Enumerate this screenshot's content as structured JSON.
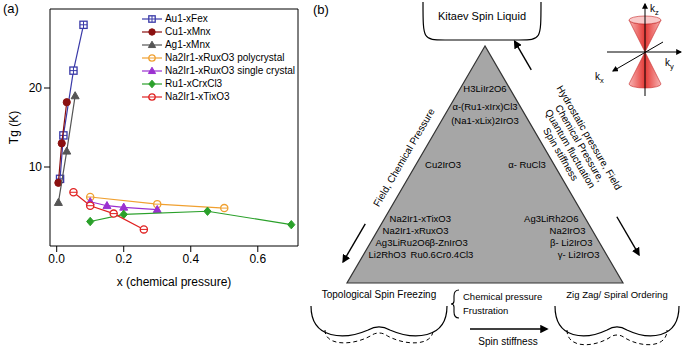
{
  "chart_data": {
    "type": "scatter",
    "panel": "(a)",
    "x_label": "x (chemical pressure)",
    "y_label": "Tg (K)",
    "xlim": [
      -0.02,
      0.72
    ],
    "xticks": [
      {
        "value": 0,
        "label": "0.0"
      },
      {
        "value": 0.2,
        "label": "0.2"
      },
      {
        "value": 0.4,
        "label": "0.4"
      },
      {
        "value": 0.6,
        "label": "0.6"
      }
    ],
    "ylim": [
      0,
      30
    ],
    "yticks": [
      10,
      20
    ],
    "legend": "upper right",
    "series": [
      {
        "name": "Au1-xFex",
        "color": "#3a3aa8",
        "marker": "square_open",
        "line_style": "solid",
        "x": [
          0.01,
          0.02,
          0.05,
          0.08
        ],
        "values": [
          8.5,
          14,
          22.2,
          28
        ]
      },
      {
        "name": "Cu1-xMnx",
        "color": "#8b1010",
        "marker": "circle",
        "line_style": "solid",
        "x": [
          0.005,
          0.015,
          0.03
        ],
        "values": [
          8,
          13,
          18.2
        ]
      },
      {
        "name": "Ag1-xMnx",
        "color": "#555555",
        "marker": "triangle",
        "line_style": "solid",
        "x": [
          0.005,
          0.03,
          0.055
        ],
        "values": [
          5.5,
          12,
          19
        ]
      },
      {
        "name": "Na2Ir1-xRuxO3 polycrystal",
        "color": "#f0a030",
        "marker": "circle_open",
        "line_style": "solid",
        "x": [
          0.1,
          0.3,
          0.5
        ],
        "values": [
          6.2,
          5.3,
          4.8
        ]
      },
      {
        "name": "Na2Ir1-xRuxO3 single crystal",
        "color": "#9b30d0",
        "marker": "triangle",
        "line_style": "solid",
        "x": [
          0.1,
          0.15,
          0.2,
          0.3
        ],
        "values": [
          5.6,
          5.1,
          4.9,
          4.6
        ]
      },
      {
        "name": "Ru1-xCrxCl3",
        "color": "#2aa02a",
        "marker": "diamond",
        "line_style": "solid",
        "x": [
          0.1,
          0.2,
          0.45,
          0.7
        ],
        "values": [
          3.1,
          4.0,
          4.4,
          2.7
        ]
      },
      {
        "name": "Na2Ir1-xTixO3",
        "color": "#e02020",
        "marker": "circle_open",
        "line_style": "solid",
        "x": [
          0.05,
          0.1,
          0.17,
          0.26
        ],
        "values": [
          6.8,
          5.1,
          4.1,
          2.1
        ]
      }
    ]
  },
  "diagram": {
    "panel": "(b)",
    "top_state": "Kitaev Spin Liquid",
    "cone_axes": [
      "kz",
      "ky",
      "kx"
    ],
    "apex_materials": [
      "H3LiIr2O6",
      "α-(Ru1-xIrx)Cl3",
      "(Na1-xLix)2IrO3"
    ],
    "left_material": "Cu2IrO3",
    "right_material": "α- RuCl3",
    "bottom_left_materials": [
      [
        "Na2Ir1-xTixO3"
      ],
      [
        "Na2Ir1-xRuxO3"
      ],
      [
        "Ag3LiRu2O6",
        "β-ZnIrO3"
      ],
      [
        "Li2RhO3",
        "Ru0.6Cr0.4Cl3"
      ]
    ],
    "bottom_right_materials": [
      "Ag3LiRh2O6",
      "Na2IrO3",
      "β- Li2IrO3",
      "γ- Li2IrO3"
    ],
    "left_edge": "Field, Chemical Pressure",
    "right_edge": [
      "Hydrostatic pressure, Field",
      "Chemical Pressure,",
      "Quantum fluctuation",
      "Spin stiffness"
    ],
    "bottom_left_state": "Topological Spin Freezing",
    "bottom_right_state": "Zig Zag/ Spiral Ordering",
    "middle": [
      "Chemical pressure",
      "Frustration"
    ],
    "bottom": "Spin stiffness"
  }
}
